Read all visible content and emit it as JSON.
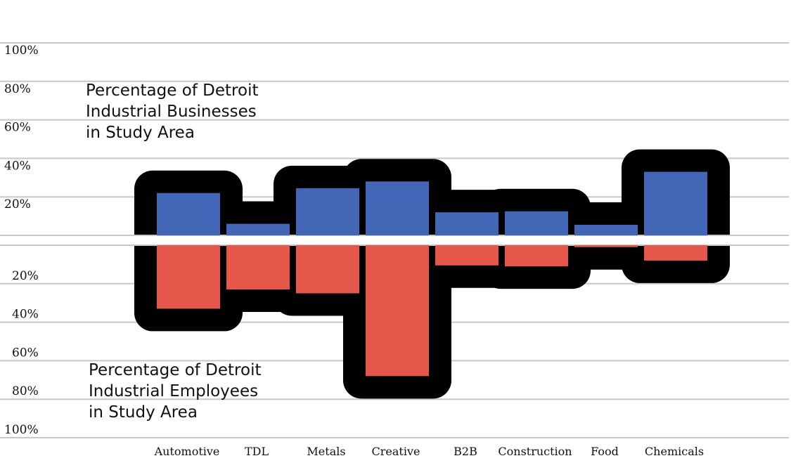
{
  "chart_data": {
    "type": "bar",
    "categories": [
      "Automotive",
      "TDL",
      "Metals",
      "Creative",
      "B2B",
      "Construction",
      "Food",
      "Chemicals"
    ],
    "series": [
      {
        "name": "Percentage of Detroit Industrial Businesses in Study Area",
        "values": [
          22,
          6,
          24.5,
          28,
          12,
          12.5,
          5.5,
          33
        ]
      },
      {
        "name": "Percentage of Detroit Industrial Employees in Study Area",
        "values": [
          33,
          23,
          25,
          68,
          10.5,
          11,
          1,
          8
        ]
      }
    ],
    "upper_ticks": [
      "100%",
      "80%",
      "60%",
      "40%",
      "20%"
    ],
    "lower_ticks": [
      "20%",
      "40%",
      "60%",
      "80%",
      "100%"
    ],
    "ylim": [
      0,
      100
    ],
    "colors": {
      "businesses": "#4367b6",
      "employees": "#e6574b",
      "halo": "#000000",
      "grid": "#c8c8c8"
    },
    "annotations": {
      "top": [
        "Percentage of Detroit",
        "Industrial Businesses",
        "in Study Area"
      ],
      "bottom": [
        "Percentage of Detroit",
        "Industrial Employees",
        "in Study Area"
      ]
    }
  }
}
